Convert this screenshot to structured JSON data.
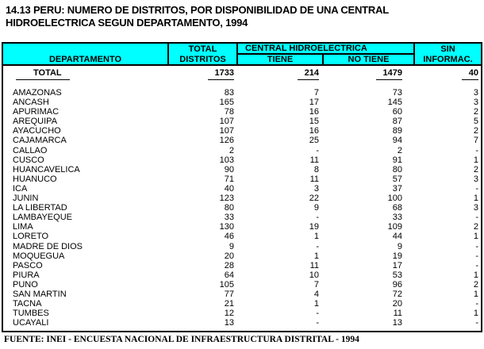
{
  "title_line1": "14.13 PERU: NUMERO DE DISTRITOS, POR DISPONIBILIDAD DE UNA CENTRAL",
  "title_line2": "HIDROELECTRICA SEGUN DEPARTAMENTO, 1994",
  "colors": {
    "header_bg": "#00FFFF",
    "border": "#000000",
    "text": "#000000",
    "background": "#FFFFFF"
  },
  "table": {
    "header": {
      "departamento": "DEPARTAMENTO",
      "total_line1": "TOTAL",
      "total_line2": "DISTRITOS",
      "group": "CENTRAL HIDROELECTRICA",
      "tiene": "TIENE",
      "no_tiene": "NO TIENE",
      "sin_line1": "SIN",
      "sin_line2": "INFORMAC."
    },
    "total_row": {
      "label": "TOTAL",
      "total": "1733",
      "tiene": "214",
      "no_tiene": "1479",
      "sin": "40"
    },
    "rows": [
      [
        "AMAZONAS",
        "83",
        "7",
        "73",
        "3"
      ],
      [
        "ANCASH",
        "165",
        "17",
        "145",
        "3"
      ],
      [
        "APURIMAC",
        "78",
        "16",
        "60",
        "2"
      ],
      [
        "AREQUIPA",
        "107",
        "15",
        "87",
        "5"
      ],
      [
        "AYACUCHO",
        "107",
        "16",
        "89",
        "2"
      ],
      [
        "CAJAMARCA",
        "126",
        "25",
        "94",
        "7"
      ],
      [
        "CALLAO",
        "2",
        "-",
        "2",
        "-"
      ],
      [
        "CUSCO",
        "103",
        "11",
        "91",
        "1"
      ],
      [
        "HUANCAVELICA",
        "90",
        "8",
        "80",
        "2"
      ],
      [
        "HUANUCO",
        "71",
        "11",
        "57",
        "3"
      ],
      [
        "ICA",
        "40",
        "3",
        "37",
        "-"
      ],
      [
        "JUNIN",
        "123",
        "22",
        "100",
        "1"
      ],
      [
        "LA LIBERTAD",
        "80",
        "9",
        "68",
        "3"
      ],
      [
        "LAMBAYEQUE",
        "33",
        "-",
        "33",
        "-"
      ],
      [
        "LIMA",
        "130",
        "19",
        "109",
        "2"
      ],
      [
        "LORETO",
        "46",
        "1",
        "44",
        "1"
      ],
      [
        "MADRE DE DIOS",
        "9",
        "-",
        "9",
        "-"
      ],
      [
        "MOQUEGUA",
        "20",
        "1",
        "19",
        "-"
      ],
      [
        "PASCO",
        "28",
        "11",
        "17",
        "-"
      ],
      [
        "PIURA",
        "64",
        "10",
        "53",
        "1"
      ],
      [
        "PUNO",
        "105",
        "7",
        "96",
        "2"
      ],
      [
        "SAN MARTIN",
        "77",
        "4",
        "72",
        "1"
      ],
      [
        "TACNA",
        "21",
        "1",
        "20",
        "-"
      ],
      [
        "TUMBES",
        "12",
        "-",
        "11",
        "1"
      ],
      [
        "UCAYALI",
        "13",
        "-",
        "13",
        "-"
      ]
    ]
  },
  "footer": "FUENTE: INEI - ENCUESTA NACIONAL DE INFRAESTRUCTURA DISTRITAL - 1994"
}
